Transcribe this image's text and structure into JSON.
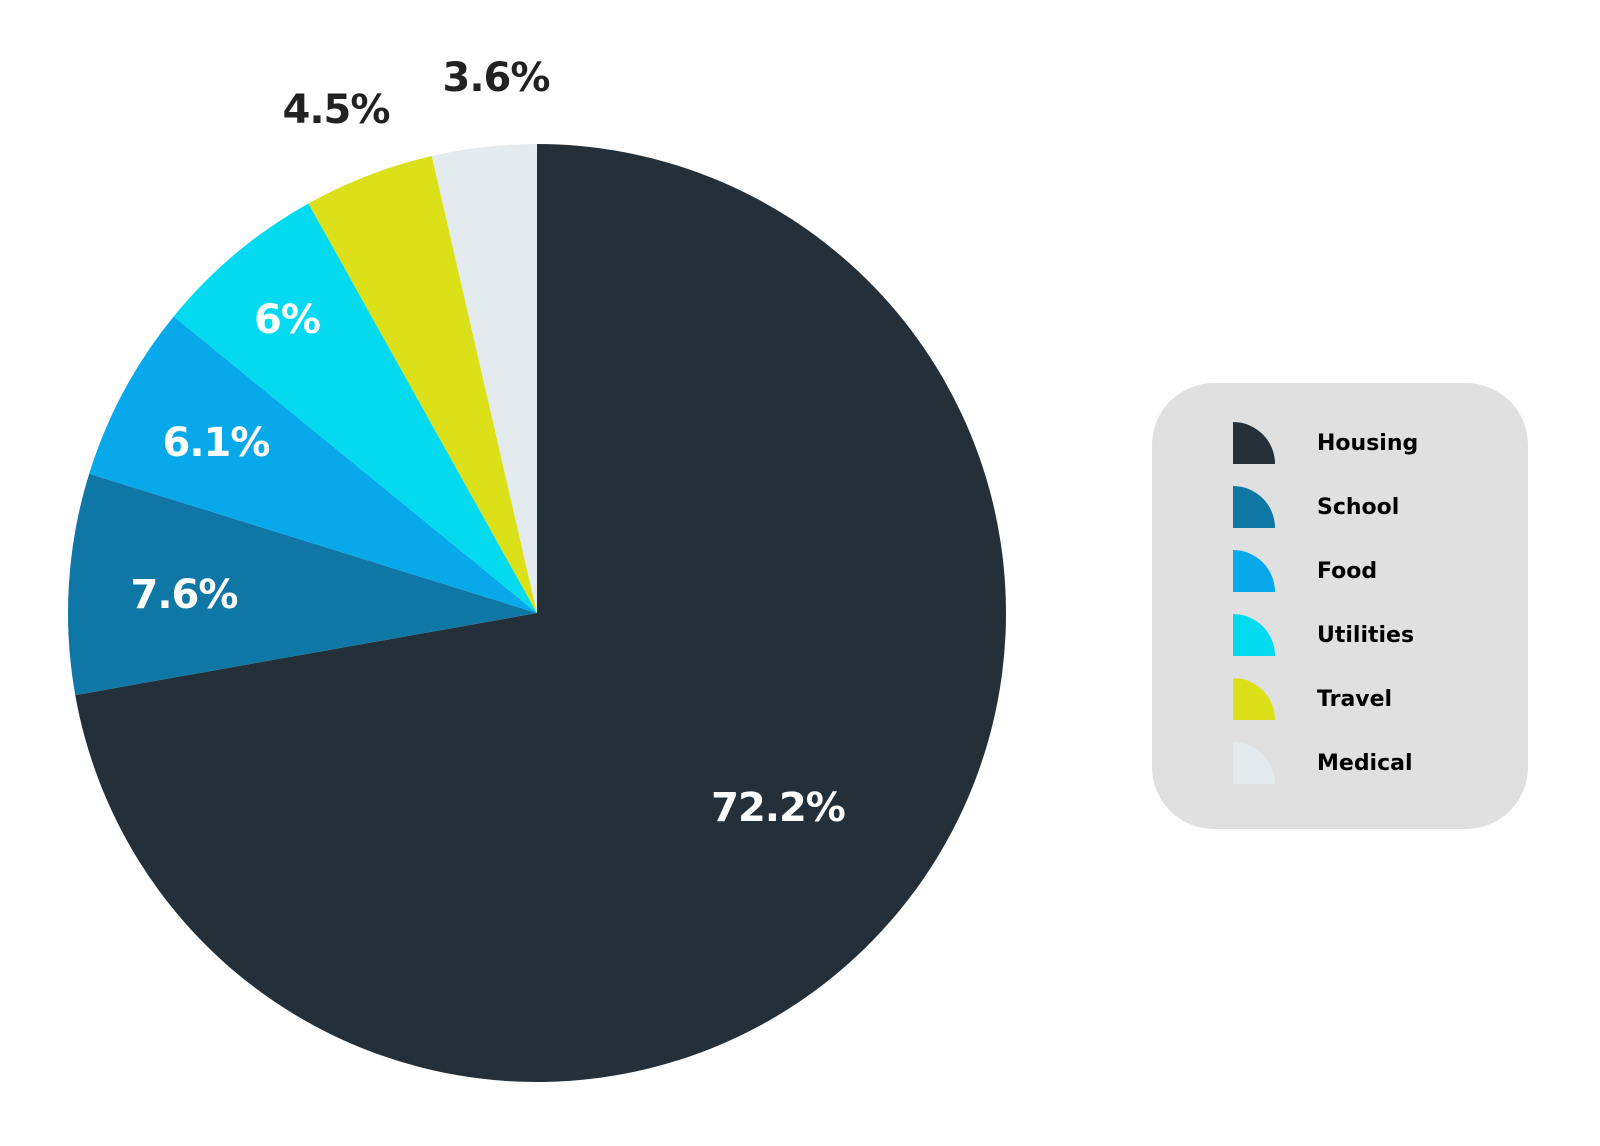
{
  "chart_data": {
    "type": "pie",
    "categories": [
      "Housing",
      "School",
      "Food",
      "Utilities",
      "Travel",
      "Medical"
    ],
    "values": [
      72.2,
      7.6,
      6.1,
      6,
      4.5,
      3.6
    ],
    "value_labels": [
      "72.2%",
      "7.6%",
      "6.1%",
      "6%",
      "4.5%",
      "3.6%"
    ],
    "colors": [
      "#233039",
      "#0e77a5",
      "#07a9ea",
      "#03daf0",
      "#dce018",
      "#e3ebef"
    ],
    "label_colors": [
      "#ffffff",
      "#ffffff",
      "#ffffff",
      "#ffffff",
      "#222222",
      "#222222"
    ],
    "start_angle": "12 o'clock",
    "direction": "clockwise",
    "legend_position": "right"
  }
}
